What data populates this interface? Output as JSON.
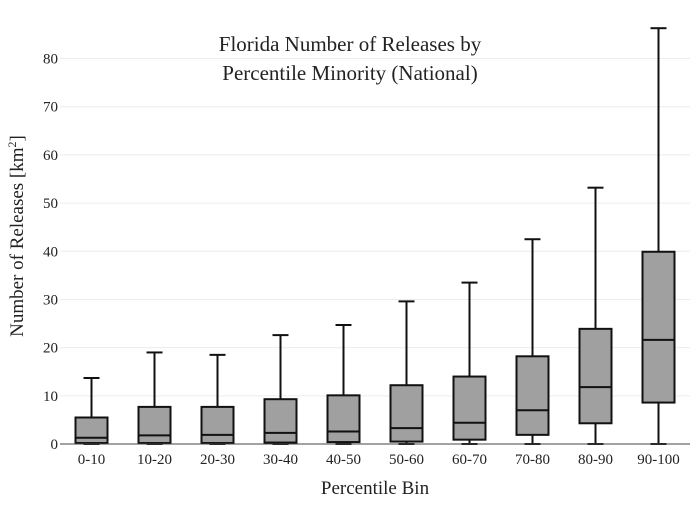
{
  "chart_data": {
    "type": "box",
    "title_lines": [
      "Florida Number of Releases by",
      "Percentile Minority (National)"
    ],
    "xlabel": "Percentile Bin",
    "ylabel_main": "Number of Releases  [km",
    "ylabel_sup": "2",
    "ylabel_end": "]",
    "ylim": [
      0,
      88
    ],
    "yticks": [
      0,
      10,
      20,
      30,
      40,
      50,
      60,
      70,
      80
    ],
    "grid": true,
    "box_color": "#a0a0a0",
    "categories": [
      "0-10",
      "10-20",
      "20-30",
      "30-40",
      "40-50",
      "50-60",
      "60-70",
      "70-80",
      "80-90",
      "90-100"
    ],
    "boxes": [
      {
        "min": 0,
        "q1": 0.2,
        "median": 1.3,
        "q3": 5.5,
        "max": 13.7
      },
      {
        "min": 0,
        "q1": 0.2,
        "median": 1.8,
        "q3": 7.7,
        "max": 19
      },
      {
        "min": 0,
        "q1": 0.2,
        "median": 1.9,
        "q3": 7.7,
        "max": 18.5
      },
      {
        "min": 0,
        "q1": 0.3,
        "median": 2.3,
        "q3": 9.3,
        "max": 22.6
      },
      {
        "min": 0,
        "q1": 0.4,
        "median": 2.6,
        "q3": 10.1,
        "max": 24.7
      },
      {
        "min": 0,
        "q1": 0.5,
        "median": 3.3,
        "q3": 12.2,
        "max": 29.6
      },
      {
        "min": 0,
        "q1": 0.9,
        "median": 4.4,
        "q3": 14,
        "max": 33.5
      },
      {
        "min": 0,
        "q1": 1.9,
        "median": 7,
        "q3": 18.2,
        "max": 42.5
      },
      {
        "min": 0,
        "q1": 4.3,
        "median": 11.8,
        "q3": 23.9,
        "max": 53.2
      },
      {
        "min": 0,
        "q1": 8.6,
        "median": 21.6,
        "q3": 39.9,
        "max": 86.3
      }
    ]
  }
}
